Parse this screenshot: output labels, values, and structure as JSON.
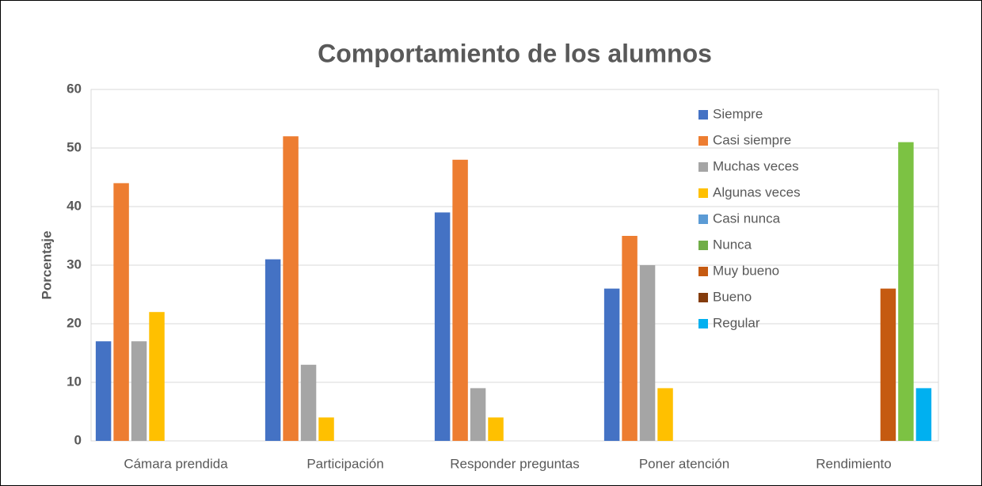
{
  "chart_data": {
    "type": "bar",
    "title": "Comportamiento de los alumnos",
    "ylabel": "Porcentaje",
    "categories": [
      "Cámara prendida",
      "Participación",
      "Responder preguntas",
      "Poner atención",
      "Rendimiento"
    ],
    "series": [
      {
        "name": "Siempre",
        "color": "#4472c4",
        "values": [
          17,
          31,
          39,
          26,
          null
        ]
      },
      {
        "name": "Casi siempre",
        "color": "#ed7d31",
        "values": [
          44,
          52,
          48,
          35,
          null
        ]
      },
      {
        "name": "Muchas veces",
        "color": "#a5a5a5",
        "values": [
          17,
          13,
          9,
          30,
          null
        ]
      },
      {
        "name": "Algunas veces",
        "color": "#ffc000",
        "values": [
          22,
          4,
          4,
          9,
          null
        ]
      },
      {
        "name": "Casi nunca",
        "color": "#5b9bd5",
        "values": [
          null,
          null,
          null,
          null,
          null
        ]
      },
      {
        "name": "Nunca",
        "color": "#70ad47",
        "values": [
          null,
          null,
          null,
          null,
          null
        ]
      },
      {
        "name": "Muy bueno",
        "color": "#c55a11",
        "values": [
          null,
          null,
          null,
          null,
          26
        ]
      },
      {
        "name": "Bueno",
        "color": "#843c0c",
        "point_colors": [
          null,
          null,
          null,
          null,
          "#7cc243"
        ],
        "values": [
          null,
          null,
          null,
          null,
          51
        ]
      },
      {
        "name": "Regular",
        "color": "#00b0f0",
        "values": [
          null,
          null,
          null,
          null,
          9
        ]
      }
    ],
    "ylim": [
      0,
      60
    ],
    "yticks": [
      0,
      10,
      20,
      30,
      40,
      50,
      60
    ],
    "grid": true,
    "legend": "upper right"
  }
}
